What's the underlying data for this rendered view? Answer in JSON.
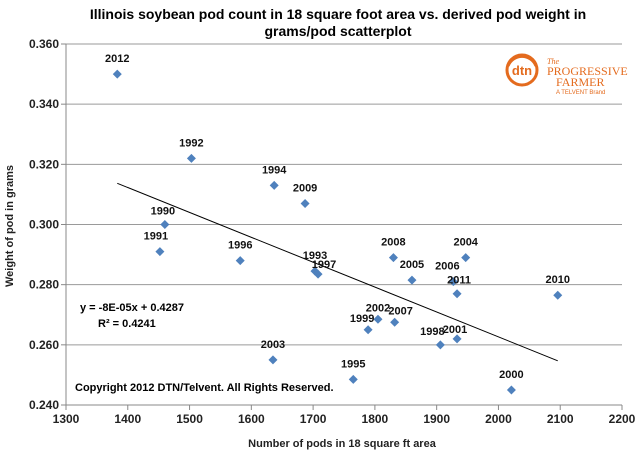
{
  "chart_data": {
    "type": "scatter",
    "title_lines": [
      "Illinois soybean pod count in 18 square foot area vs. derived pod weight in",
      "grams/pod scatterplot"
    ],
    "xlabel": "Number of pods in 18 square ft area",
    "ylabel": "Weight of pod in grams",
    "xlim": [
      1300,
      2200
    ],
    "ylim": [
      0.24,
      0.36
    ],
    "x_ticks": [
      "1300",
      "1400",
      "1500",
      "1600",
      "1700",
      "1800",
      "1900",
      "2000",
      "2100",
      "2200"
    ],
    "y_ticks": [
      "0.240",
      "0.260",
      "0.280",
      "0.300",
      "0.320",
      "0.340",
      "0.360"
    ],
    "grid": "horizontal",
    "series": [
      {
        "color": "#4f81bd",
        "marker": "diamond",
        "points": [
          {
            "label": "2012",
            "x": 1383,
            "y": 0.35
          },
          {
            "label": "1992",
            "x": 1503,
            "y": 0.322
          },
          {
            "label": "1994",
            "x": 1637,
            "y": 0.313
          },
          {
            "label": "2009",
            "x": 1687,
            "y": 0.307
          },
          {
            "label": "1990",
            "x": 1460,
            "y": 0.3
          },
          {
            "label": "1991",
            "x": 1452,
            "y": 0.291
          },
          {
            "label": "1996",
            "x": 1582,
            "y": 0.288
          },
          {
            "label": "1993",
            "x": 1703,
            "y": 0.2845
          },
          {
            "label": "1997",
            "x": 1708,
            "y": 0.2835
          },
          {
            "label": "2008",
            "x": 1830,
            "y": 0.289
          },
          {
            "label": "2005",
            "x": 1860,
            "y": 0.2815
          },
          {
            "label": "2004",
            "x": 1947,
            "y": 0.289
          },
          {
            "label": "2006",
            "x": 1927,
            "y": 0.281
          },
          {
            "label": "2011",
            "x": 1933,
            "y": 0.277
          },
          {
            "label": "2010",
            "x": 2096,
            "y": 0.2765
          },
          {
            "label": "2002",
            "x": 1805,
            "y": 0.2685
          },
          {
            "label": "2007",
            "x": 1832,
            "y": 0.2675
          },
          {
            "label": "1999",
            "x": 1789,
            "y": 0.265
          },
          {
            "label": "1998",
            "x": 1906,
            "y": 0.26
          },
          {
            "label": "2001",
            "x": 1933,
            "y": 0.262
          },
          {
            "label": "2003",
            "x": 1635,
            "y": 0.255
          },
          {
            "label": "1995",
            "x": 1765,
            "y": 0.2485
          },
          {
            "label": "2000",
            "x": 2021,
            "y": 0.245
          }
        ]
      }
    ],
    "trendline": {
      "type": "linear",
      "x_start": 1383,
      "x_end": 2096,
      "y_start": 0.3137,
      "y_end": 0.2547,
      "color": "#000000"
    },
    "annotations": {
      "equation": "y = -8E-05x + 0.4287",
      "r_squared": "R² = 0.4241",
      "copyright": "Copyright 2012 DTN/Telvent. All Rights Reserved."
    }
  },
  "logo": {
    "badge_text": "dtn",
    "line1": "The",
    "line2": "PROGRESSIVE",
    "line3": "FARMER",
    "tagline": "A TELVENT Brand",
    "color": "#e46b1e"
  }
}
